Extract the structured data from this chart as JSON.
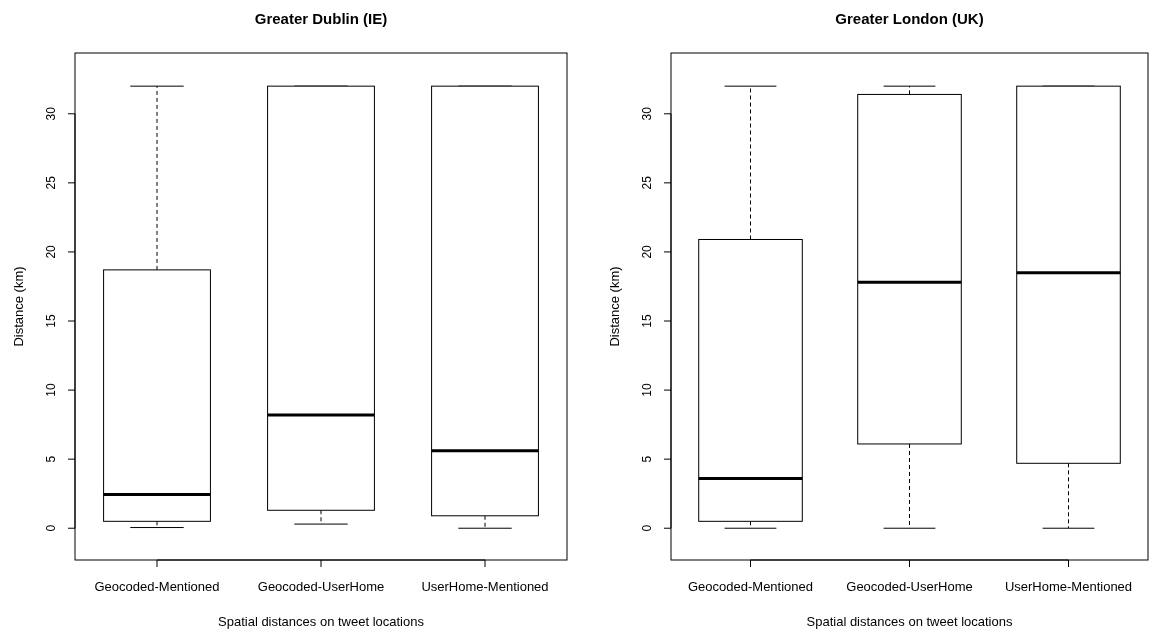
{
  "chart_data": [
    {
      "type": "box",
      "title": "Greater Dublin (IE)",
      "xlabel": "Spatial distances on tweet locations",
      "ylabel": "Distance (km)",
      "categories": [
        "Geocoded-Mentioned",
        "Geocoded-UserHome",
        "UserHome-Mentioned"
      ],
      "boxes": [
        {
          "low": 0.05,
          "q1": 0.5,
          "median": 2.45,
          "q3": 18.7,
          "high": 32
        },
        {
          "low": 0.3,
          "q1": 1.3,
          "median": 8.2,
          "q3": 32,
          "high": 32
        },
        {
          "low": 0,
          "q1": 0.9,
          "median": 5.6,
          "q3": 32,
          "high": 32
        }
      ],
      "ylim": [
        -2.3,
        34.4
      ],
      "yticks": [
        0,
        5,
        10,
        15,
        20,
        25,
        30
      ]
    },
    {
      "type": "box",
      "title": "Greater London (UK)",
      "xlabel": "Spatial distances on tweet locations",
      "ylabel": "Distance (km)",
      "categories": [
        "Geocoded-Mentioned",
        "Geocoded-UserHome",
        "UserHome-Mentioned"
      ],
      "boxes": [
        {
          "low": 0,
          "q1": 0.5,
          "median": 3.6,
          "q3": 20.9,
          "high": 32
        },
        {
          "low": 0,
          "q1": 6.1,
          "median": 17.8,
          "q3": 31.4,
          "high": 32
        },
        {
          "low": 0,
          "q1": 4.7,
          "median": 18.5,
          "q3": 32,
          "high": 32
        }
      ],
      "ylim": [
        -2.3,
        34.4
      ],
      "yticks": [
        0,
        5,
        10,
        15,
        20,
        25,
        30
      ]
    }
  ]
}
